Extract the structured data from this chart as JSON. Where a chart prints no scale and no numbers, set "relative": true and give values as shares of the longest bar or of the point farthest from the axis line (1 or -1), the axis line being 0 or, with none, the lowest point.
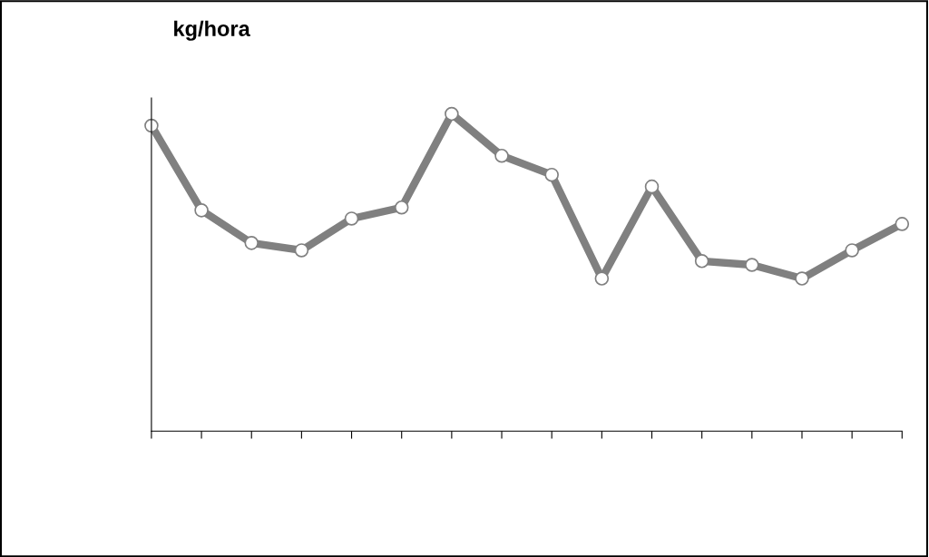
{
  "chart_data": {
    "type": "line",
    "title": "kg/hora",
    "relative": true,
    "categories": [
      null,
      null,
      null,
      null,
      null,
      null,
      null,
      null,
      null,
      null,
      null,
      null,
      null,
      null,
      null,
      null
    ],
    "series": [
      {
        "color": "#808080",
        "values": [
          0.963,
          0.696,
          0.593,
          0.57,
          0.67,
          0.705,
          1,
          0.868,
          0.808,
          0.481,
          0.771,
          0.536,
          0.524,
          0.481,
          0.57,
          0.653
        ]
      }
    ],
    "marker": "circle",
    "line_style": "solid",
    "grid": false,
    "legend": false
  }
}
